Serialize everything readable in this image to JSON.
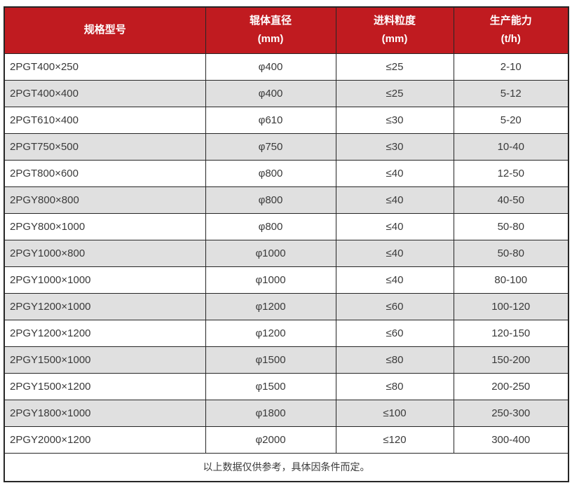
{
  "table": {
    "headers": [
      {
        "title": "规格型号",
        "unit": ""
      },
      {
        "title": "辊体直径",
        "unit": "(mm)"
      },
      {
        "title": "进料粒度",
        "unit": "(mm)"
      },
      {
        "title": "生产能力",
        "unit": "(t/h)"
      }
    ],
    "rows": [
      [
        "2PGT400×250",
        "φ400",
        "≤25",
        "2-10"
      ],
      [
        "2PGT400×400",
        "φ400",
        "≤25",
        "5-12"
      ],
      [
        "2PGT610×400",
        "φ610",
        "≤30",
        "5-20"
      ],
      [
        "2PGT750×500",
        "φ750",
        "≤30",
        "10-40"
      ],
      [
        "2PGT800×600",
        "φ800",
        "≤40",
        "12-50"
      ],
      [
        "2PGY800×800",
        "φ800",
        "≤40",
        "40-50"
      ],
      [
        "2PGY800×1000",
        "φ800",
        "≤40",
        "50-80"
      ],
      [
        "2PGY1000×800",
        "φ1000",
        "≤40",
        "50-80"
      ],
      [
        "2PGY1000×1000",
        "φ1000",
        "≤40",
        "80-100"
      ],
      [
        "2PGY1200×1000",
        "φ1200",
        "≤60",
        "100-120"
      ],
      [
        "2PGY1200×1200",
        "φ1200",
        "≤60",
        "120-150"
      ],
      [
        "2PGY1500×1000",
        "φ1500",
        "≤80",
        "150-200"
      ],
      [
        "2PGY1500×1200",
        "φ1500",
        "≤80",
        "200-250"
      ],
      [
        "2PGY1800×1000",
        "φ1800",
        "≤100",
        "250-300"
      ],
      [
        "2PGY2000×1200",
        "φ2000",
        "≤120",
        "300-400"
      ]
    ],
    "footer_note": "以上数据仅供参考，具体因条件而定。"
  },
  "colors": {
    "header_bg": "#c01b20",
    "header_text": "#ffffff",
    "row_bg": "#ffffff",
    "row_alt_bg": "#e0e0e0",
    "border": "#262626",
    "body_text": "#3a3a3a"
  }
}
